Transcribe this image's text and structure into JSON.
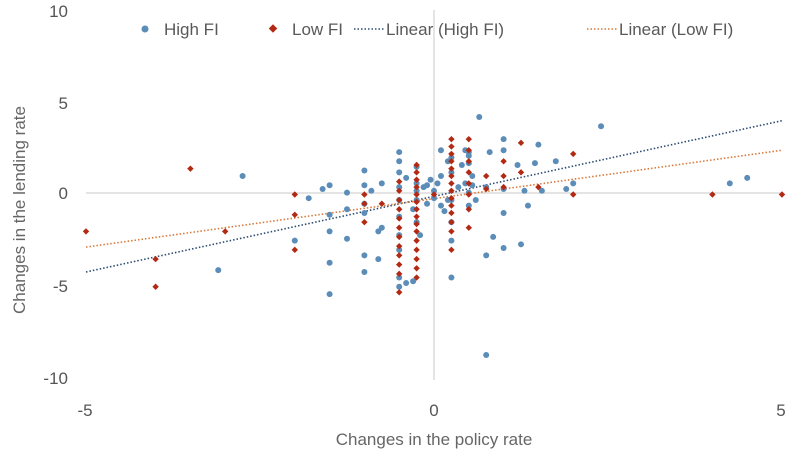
{
  "chart_data": {
    "type": "scatter",
    "xlabel": "Changes in the policy rate",
    "ylabel": "Changes in the lending rate",
    "xlim": [
      -5,
      5
    ],
    "ylim": [
      -10,
      10
    ],
    "x_ticks": [
      "-5",
      "0",
      "5"
    ],
    "y_ticks": [
      "10",
      "5",
      "0",
      "-5",
      "-10"
    ],
    "grid": false,
    "legend_position": "top",
    "series": [
      {
        "name": "High FI",
        "marker": "circle",
        "color": "#5b8db8",
        "points": [
          [
            -2.75,
            1.0
          ],
          [
            -3.1,
            -4.1
          ],
          [
            -2.0,
            -2.5
          ],
          [
            -1.5,
            -5.4
          ],
          [
            -1.5,
            -3.7
          ],
          [
            -1.5,
            -2.0
          ],
          [
            -1.5,
            -1.1
          ],
          [
            -1.5,
            0.5
          ],
          [
            -1.6,
            0.3
          ],
          [
            -1.8,
            -0.2
          ],
          [
            -1.25,
            0.1
          ],
          [
            -1.25,
            -0.8
          ],
          [
            -1.25,
            -2.4
          ],
          [
            -1.0,
            1.3
          ],
          [
            -1.0,
            0.5
          ],
          [
            -1.0,
            -0.5
          ],
          [
            -1.0,
            -1.0
          ],
          [
            -1.0,
            -3.3
          ],
          [
            -1.0,
            -4.2
          ],
          [
            -0.9,
            0.2
          ],
          [
            -0.8,
            -2.0
          ],
          [
            -0.8,
            -3.5
          ],
          [
            -0.75,
            -1.8
          ],
          [
            -0.75,
            0.6
          ],
          [
            -0.5,
            2.3
          ],
          [
            -0.5,
            1.8
          ],
          [
            -0.5,
            1.2
          ],
          [
            -0.5,
            0.4
          ],
          [
            -0.5,
            -0.3
          ],
          [
            -0.5,
            -1.2
          ],
          [
            -0.5,
            -2.2
          ],
          [
            -0.5,
            -3.0
          ],
          [
            -0.5,
            -4.5
          ],
          [
            -0.5,
            -5.0
          ],
          [
            -0.4,
            -4.8
          ],
          [
            -0.4,
            0.9
          ],
          [
            -0.3,
            -4.7
          ],
          [
            -0.3,
            -0.8
          ],
          [
            -0.25,
            1.5
          ],
          [
            -0.25,
            0.6
          ],
          [
            -0.25,
            0.2
          ],
          [
            -0.25,
            -0.3
          ],
          [
            -0.25,
            -1.5
          ],
          [
            -0.2,
            -2.2
          ],
          [
            -0.15,
            0.4
          ],
          [
            -0.1,
            0.5
          ],
          [
            -0.1,
            -0.5
          ],
          [
            -0.05,
            0.8
          ],
          [
            0.0,
            0.2
          ],
          [
            0.0,
            -0.2
          ],
          [
            0.05,
            0.6
          ],
          [
            0.1,
            2.4
          ],
          [
            0.1,
            1.0
          ],
          [
            0.1,
            -0.6
          ],
          [
            0.15,
            -0.9
          ],
          [
            0.2,
            1.8
          ],
          [
            0.2,
            -0.3
          ],
          [
            0.25,
            2.0
          ],
          [
            0.25,
            1.2
          ],
          [
            0.25,
            -0.3
          ],
          [
            0.25,
            -1.5
          ],
          [
            0.25,
            -2.5
          ],
          [
            0.25,
            -4.5
          ],
          [
            0.35,
            0.4
          ],
          [
            0.4,
            1.6
          ],
          [
            0.45,
            2.4
          ],
          [
            0.45,
            0.6
          ],
          [
            0.5,
            2.3
          ],
          [
            0.5,
            2.1
          ],
          [
            0.5,
            1.7
          ],
          [
            0.5,
            0.1
          ],
          [
            0.5,
            -0.6
          ],
          [
            0.55,
            1.0
          ],
          [
            0.55,
            0.5
          ],
          [
            0.6,
            -0.3
          ],
          [
            0.65,
            4.2
          ],
          [
            0.75,
            -8.7
          ],
          [
            0.75,
            -3.3
          ],
          [
            0.75,
            0.4
          ],
          [
            0.8,
            2.3
          ],
          [
            0.85,
            -2.3
          ],
          [
            1.0,
            3.0
          ],
          [
            1.0,
            2.4
          ],
          [
            1.0,
            0.3
          ],
          [
            1.0,
            -1.0
          ],
          [
            1.0,
            -2.9
          ],
          [
            1.2,
            1.6
          ],
          [
            1.25,
            -2.7
          ],
          [
            1.3,
            0.2
          ],
          [
            1.35,
            -0.6
          ],
          [
            1.45,
            1.7
          ],
          [
            1.5,
            2.7
          ],
          [
            1.55,
            0.2
          ],
          [
            1.75,
            1.8
          ],
          [
            1.9,
            0.3
          ],
          [
            2.0,
            0.6
          ],
          [
            2.4,
            3.7
          ],
          [
            4.25,
            0.6
          ],
          [
            4.5,
            0.9
          ]
        ]
      },
      {
        "name": "Low FI",
        "marker": "diamond",
        "color": "#b22a14",
        "points": [
          [
            -5.0,
            -2.0
          ],
          [
            -4.0,
            -3.5
          ],
          [
            -4.0,
            -5.0
          ],
          [
            -3.5,
            1.4
          ],
          [
            -3.0,
            -2.0
          ],
          [
            -2.0,
            0.0
          ],
          [
            -2.0,
            -1.1
          ],
          [
            -2.0,
            -3.0
          ],
          [
            -1.0,
            0.0
          ],
          [
            -1.0,
            -0.5
          ],
          [
            -1.0,
            -1.5
          ],
          [
            -0.75,
            -0.5
          ],
          [
            -0.5,
            0.7
          ],
          [
            -0.5,
            0.2
          ],
          [
            -0.5,
            -0.3
          ],
          [
            -0.5,
            -0.8
          ],
          [
            -0.5,
            -1.3
          ],
          [
            -0.5,
            -1.8
          ],
          [
            -0.5,
            -2.3
          ],
          [
            -0.5,
            -2.8
          ],
          [
            -0.5,
            -3.3
          ],
          [
            -0.5,
            -3.8
          ],
          [
            -0.5,
            -4.3
          ],
          [
            -0.5,
            -5.3
          ],
          [
            -0.25,
            1.6
          ],
          [
            -0.25,
            1.2
          ],
          [
            -0.25,
            0.8
          ],
          [
            -0.25,
            0.4
          ],
          [
            -0.25,
            0.0
          ],
          [
            -0.25,
            -0.4
          ],
          [
            -0.25,
            -0.8
          ],
          [
            -0.25,
            -1.2
          ],
          [
            -0.25,
            -1.6
          ],
          [
            -0.25,
            -2.0
          ],
          [
            -0.25,
            -2.5
          ],
          [
            -0.25,
            -3.0
          ],
          [
            -0.25,
            -3.5
          ],
          [
            -0.25,
            -4.0
          ],
          [
            -0.25,
            -4.5
          ],
          [
            0.0,
            0.0
          ],
          [
            0.25,
            3.0
          ],
          [
            0.25,
            2.6
          ],
          [
            0.25,
            2.2
          ],
          [
            0.25,
            1.8
          ],
          [
            0.25,
            1.4
          ],
          [
            0.25,
            1.0
          ],
          [
            0.25,
            0.6
          ],
          [
            0.25,
            0.2
          ],
          [
            0.25,
            -0.2
          ],
          [
            0.25,
            -0.6
          ],
          [
            0.25,
            -1.0
          ],
          [
            0.25,
            -1.5
          ],
          [
            0.25,
            -2.0
          ],
          [
            0.25,
            -3.0
          ],
          [
            0.5,
            3.0
          ],
          [
            0.5,
            2.4
          ],
          [
            0.5,
            1.8
          ],
          [
            0.5,
            1.2
          ],
          [
            0.5,
            0.6
          ],
          [
            0.5,
            0.0
          ],
          [
            0.5,
            -0.8
          ],
          [
            0.5,
            -1.8
          ],
          [
            0.75,
            1.0
          ],
          [
            0.75,
            0.3
          ],
          [
            1.0,
            1.8
          ],
          [
            1.0,
            1.0
          ],
          [
            1.0,
            0.4
          ],
          [
            1.25,
            2.8
          ],
          [
            1.25,
            1.2
          ],
          [
            1.5,
            0.4
          ],
          [
            2.0,
            2.2
          ],
          [
            2.0,
            0.0
          ],
          [
            4.0,
            0.0
          ],
          [
            5.0,
            0.0
          ]
        ]
      }
    ],
    "trendlines": [
      {
        "name": "Linear (High FI)",
        "style": "dotted",
        "color": "#2e4d73",
        "points": [
          [
            -5,
            -4.2
          ],
          [
            5,
            4.0
          ]
        ]
      },
      {
        "name": "Linear (Low FI)",
        "style": "dotted",
        "color": "#d9793a",
        "points": [
          [
            -5,
            -2.85
          ],
          [
            5,
            2.4
          ]
        ]
      }
    ]
  }
}
